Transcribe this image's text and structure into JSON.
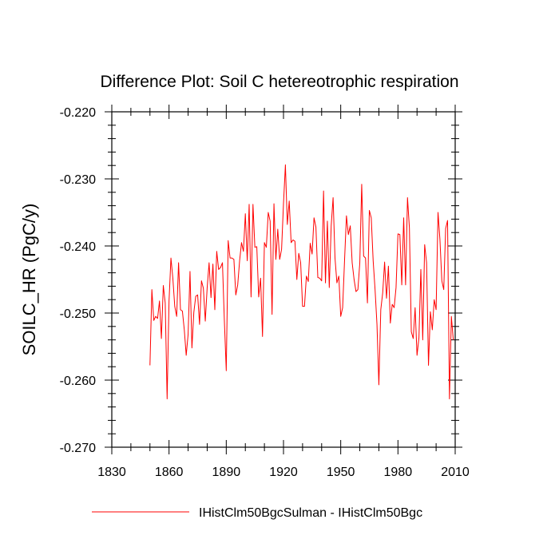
{
  "chart_data": {
    "type": "line",
    "title": "Difference Plot: Soil C hetereotrophic respiration",
    "ylabel": "SOILC_HR  (PgC/y)",
    "xlabel": "",
    "xlim": [
      1830,
      2010
    ],
    "ylim": [
      -0.27,
      -0.22
    ],
    "xticks": [
      1830,
      1860,
      1890,
      1920,
      1950,
      1980,
      2010
    ],
    "xtick_labels": [
      "1830",
      "1860",
      "1890",
      "1920",
      "1950",
      "1980",
      "2010"
    ],
    "yticks": [
      -0.22,
      -0.23,
      -0.24,
      -0.25,
      -0.26,
      -0.27
    ],
    "ytick_labels": [
      "-0.220",
      "-0.230",
      "-0.240",
      "-0.250",
      "-0.260",
      "-0.270"
    ],
    "grid": false,
    "legend": "bottom",
    "series": [
      {
        "name": "IHistClm50BgcSulman - IHistClm50Bgc",
        "color": "#ff0000",
        "x": [
          1850,
          1851,
          1852,
          1853,
          1854,
          1855,
          1856,
          1857,
          1858,
          1859,
          1860,
          1861,
          1862,
          1863,
          1864,
          1865,
          1866,
          1867,
          1868,
          1869,
          1870,
          1871,
          1872,
          1873,
          1874,
          1875,
          1876,
          1877,
          1878,
          1879,
          1880,
          1881,
          1882,
          1883,
          1884,
          1885,
          1886,
          1887,
          1888,
          1889,
          1890,
          1891,
          1892,
          1893,
          1894,
          1895,
          1896,
          1897,
          1898,
          1899,
          1900,
          1901,
          1902,
          1903,
          1904,
          1905,
          1906,
          1907,
          1908,
          1909,
          1910,
          1911,
          1912,
          1913,
          1914,
          1915,
          1916,
          1917,
          1918,
          1919,
          1920,
          1921,
          1922,
          1923,
          1924,
          1925,
          1926,
          1927,
          1928,
          1929,
          1930,
          1931,
          1932,
          1933,
          1934,
          1935,
          1936,
          1937,
          1938,
          1939,
          1940,
          1941,
          1942,
          1943,
          1944,
          1945,
          1946,
          1947,
          1948,
          1949,
          1950,
          1951,
          1952,
          1953,
          1954,
          1955,
          1956,
          1957,
          1958,
          1959,
          1960,
          1961,
          1962,
          1963,
          1964,
          1965,
          1966,
          1967,
          1968,
          1969,
          1970,
          1971,
          1972,
          1973,
          1974,
          1975,
          1976,
          1977,
          1978,
          1979,
          1980,
          1981,
          1982,
          1983,
          1984,
          1985,
          1986,
          1987,
          1988,
          1989,
          1990,
          1991,
          1992,
          1993,
          1994,
          1995,
          1996,
          1997,
          1998,
          1999,
          2000,
          2001,
          2002,
          2003,
          2004,
          2005,
          2006,
          2007,
          2008,
          2009
        ],
        "y": [
          -0.2578,
          -0.2465,
          -0.2511,
          -0.2505,
          -0.2508,
          -0.2482,
          -0.2538,
          -0.2459,
          -0.2485,
          -0.2628,
          -0.2482,
          -0.2418,
          -0.2448,
          -0.249,
          -0.2505,
          -0.2425,
          -0.2495,
          -0.2497,
          -0.2525,
          -0.2563,
          -0.2532,
          -0.2438,
          -0.2552,
          -0.2499,
          -0.2475,
          -0.2473,
          -0.2517,
          -0.2452,
          -0.2463,
          -0.2512,
          -0.2462,
          -0.2425,
          -0.2477,
          -0.2427,
          -0.2495,
          -0.2408,
          -0.2435,
          -0.2432,
          -0.2425,
          -0.2511,
          -0.2586,
          -0.2392,
          -0.2418,
          -0.2418,
          -0.242,
          -0.2473,
          -0.2458,
          -0.2422,
          -0.2395,
          -0.2408,
          -0.2352,
          -0.2422,
          -0.2338,
          -0.2476,
          -0.2338,
          -0.2402,
          -0.2401,
          -0.2476,
          -0.2448,
          -0.2535,
          -0.2395,
          -0.2402,
          -0.235,
          -0.2363,
          -0.2502,
          -0.2337,
          -0.242,
          -0.2375,
          -0.242,
          -0.2405,
          -0.2337,
          -0.2279,
          -0.2368,
          -0.2333,
          -0.2395,
          -0.2391,
          -0.2393,
          -0.245,
          -0.2411,
          -0.2425,
          -0.249,
          -0.249,
          -0.2445,
          -0.2453,
          -0.2396,
          -0.2412,
          -0.2358,
          -0.2372,
          -0.2447,
          -0.2448,
          -0.2452,
          -0.2318,
          -0.2455,
          -0.2363,
          -0.2462,
          -0.237,
          -0.2328,
          -0.2418,
          -0.2455,
          -0.2445,
          -0.2505,
          -0.2492,
          -0.2422,
          -0.2355,
          -0.2383,
          -0.237,
          -0.2425,
          -0.245,
          -0.2468,
          -0.2465,
          -0.2425,
          -0.2308,
          -0.2415,
          -0.2418,
          -0.2485,
          -0.2347,
          -0.2358,
          -0.2422,
          -0.2465,
          -0.2517,
          -0.2607,
          -0.2495,
          -0.247,
          -0.2424,
          -0.2478,
          -0.243,
          -0.2515,
          -0.2487,
          -0.2492,
          -0.2462,
          -0.2382,
          -0.2383,
          -0.2458,
          -0.2358,
          -0.2458,
          -0.2328,
          -0.2373,
          -0.2528,
          -0.2538,
          -0.2492,
          -0.2563,
          -0.2537,
          -0.2435,
          -0.254,
          -0.2398,
          -0.2425,
          -0.2578,
          -0.2498,
          -0.2525,
          -0.248,
          -0.2495,
          -0.235,
          -0.239,
          -0.2452,
          -0.2465,
          -0.2374,
          -0.2362,
          -0.2628,
          -0.2505,
          -0.254
        ]
      }
    ]
  }
}
